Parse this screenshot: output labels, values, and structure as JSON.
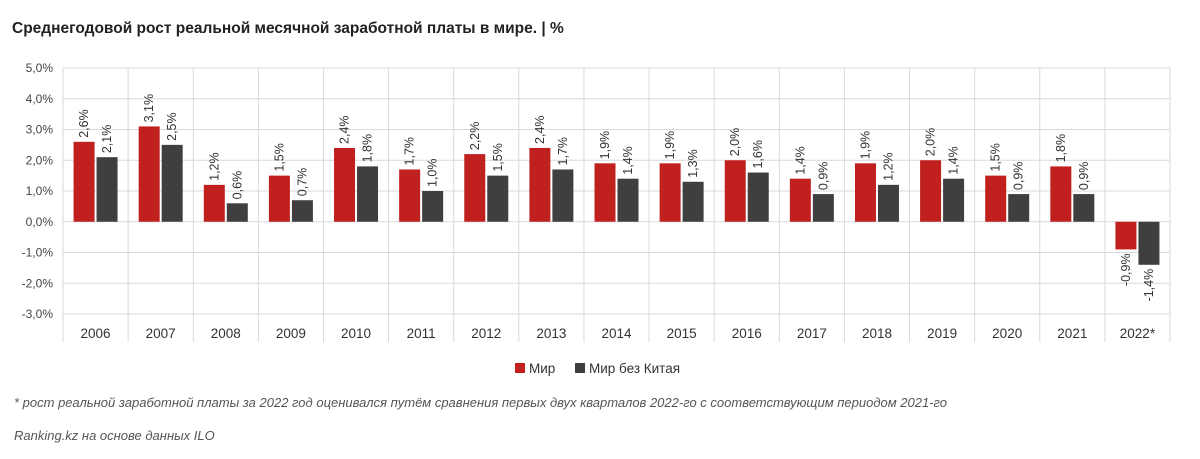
{
  "chart_data": {
    "type": "bar",
    "title": "Среднегодовой рост реальной месячной заработной платы в мире. | %",
    "categories": [
      "2006",
      "2007",
      "2008",
      "2009",
      "2010",
      "2011",
      "2012",
      "2013",
      "2014",
      "2015",
      "2016",
      "2017",
      "2018",
      "2019",
      "2020",
      "2021",
      "2022*"
    ],
    "series": [
      {
        "name": "Мир",
        "color": "#c0211f",
        "values": [
          2.6,
          3.1,
          1.2,
          1.5,
          2.4,
          1.7,
          2.2,
          2.4,
          1.9,
          1.9,
          2.0,
          1.4,
          1.9,
          2.0,
          1.5,
          1.8,
          -0.9
        ],
        "labels": [
          "2,6%",
          "3,1%",
          "1,2%",
          "1,5%",
          "2,4%",
          "1,7%",
          "2,2%",
          "2,4%",
          "1,9%",
          "1,9%",
          "2,0%",
          "1,4%",
          "1,9%",
          "2,0%",
          "1,5%",
          "1,8%",
          "-0,9%"
        ]
      },
      {
        "name": "Мир без Китая",
        "color": "#3f3f3f",
        "values": [
          2.1,
          2.5,
          0.6,
          0.7,
          1.8,
          1.0,
          1.5,
          1.7,
          1.4,
          1.3,
          1.6,
          0.9,
          1.2,
          1.4,
          0.9,
          0.9,
          -1.4
        ],
        "labels": [
          "2,1%",
          "2,5%",
          "0,6%",
          "0,7%",
          "1,8%",
          "1,0%",
          "1,5%",
          "1,7%",
          "1,4%",
          "1,3%",
          "1,6%",
          "0,9%",
          "1,2%",
          "1,4%",
          "0,9%",
          "0,9%",
          "-1,4%"
        ]
      }
    ],
    "ylim": [
      -3.0,
      5.0
    ],
    "yticks": [
      5.0,
      4.0,
      3.0,
      2.0,
      1.0,
      0.0,
      -1.0,
      -2.0,
      -3.0
    ],
    "ytick_labels": [
      "5,0%",
      "4,0%",
      "3,0%",
      "2,0%",
      "1,0%",
      "0,0%",
      "-1,0%",
      "-2,0%",
      "-3,0%"
    ],
    "xlabel": "",
    "ylabel": "",
    "grid": true,
    "legend_position": "bottom-center"
  },
  "footnote": "* рост реальной заработной платы за 2022 год оценивался путём сравнения первых двух кварталов 2022-го с соответствующим периодом 2021-го",
  "source": "Ranking.kz на основе данных ILO"
}
